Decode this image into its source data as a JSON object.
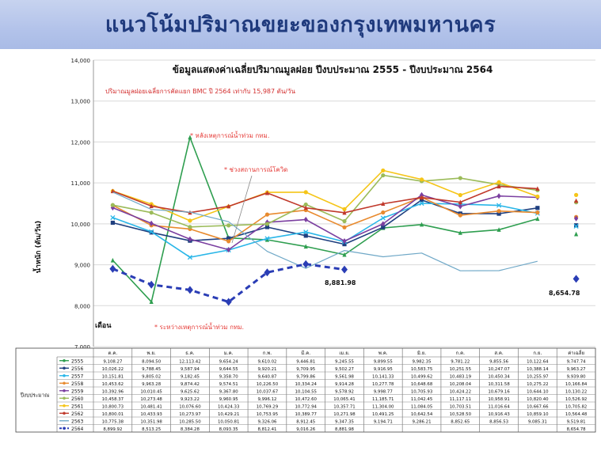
{
  "banner": {
    "title": "แนวโน้มปริมาณขยะของกรุงเทพมหานคร"
  },
  "chart_data": {
    "type": "line",
    "title": "ข้อมูลแสดงค่าเฉลี่ยปริมาณมูลฝอย ปีงบประมาณ 2555 - ปีงบประมาณ 2564",
    "subtitle": "ปริมาณมูลฝอยเฉลี่ยการคัดแยก BMC ปี 2564    เท่ากับ    15,987  ตัน/วัน",
    "ylabel": "น้ำหนัก (ตัน/วัน)",
    "xlabel": "เดือน",
    "ylim": [
      7000,
      14000
    ],
    "yticks": [
      "7,000",
      "8,000",
      "9,000",
      "10,000",
      "11,000",
      "12,000",
      "13,000",
      "14,000"
    ],
    "categories": [
      "ต.ค.",
      "พ.ย.",
      "ธ.ค.",
      "ม.ค.",
      "ก.พ.",
      "มี.ค.",
      "เม.ย.",
      "พ.ค.",
      "มิ.ย.",
      "ก.ค.",
      "ส.ค.",
      "ก.ย.",
      "ค่าเฉลี่ย"
    ],
    "table_row_header": "ปีงบประมาณ",
    "annotations": [
      {
        "text": "* หลังเหตุการณ์น้ำท่วม กทม.",
        "color": "#e53935"
      },
      {
        "text": "* ช่วงสถานการณ์โควิด",
        "color": "#e53935"
      },
      {
        "text": "* ระหว่างเหตุการณ์น้ำท่วม กทม.",
        "color": "#e53935"
      },
      {
        "text": "8,881.98",
        "color": "#111111"
      },
      {
        "text": "8,654.78",
        "color": "#111111"
      }
    ],
    "series": [
      {
        "name": "2555",
        "color": "#2e9e4f",
        "marker": "tri",
        "values": [
          9108.27,
          8094.5,
          12113.42,
          9654.24,
          9610.02,
          9446.81,
          9245.55,
          9899.55,
          9982.35,
          9781.22,
          9855.56,
          10122.64,
          9747.74
        ],
        "labels": [
          "9,108.27",
          "8,094.50",
          "12,113.42",
          "9,654.24",
          "9,610.02",
          "9,446.81",
          "9,245.55",
          "9,899.55",
          "9,982.35",
          "9,781.22",
          "9,855.56",
          "10,122.64",
          "9,747.74"
        ]
      },
      {
        "name": "2556",
        "color": "#1f3f7f",
        "marker": "sq",
        "values": [
          10026.22,
          9788.45,
          9587.94,
          9644.55,
          9920.21,
          9709.95,
          9502.27,
          9916.95,
          10583.75,
          10251.55,
          10247.07,
          10388.14,
          9963.27
        ],
        "labels": [
          "10,026.22",
          "9,788.45",
          "9,587.94",
          "9,644.55",
          "9,920.21",
          "9,709.95",
          "9,502.27",
          "9,916.95",
          "10,583.75",
          "10,251.55",
          "10,247.07",
          "10,388.14",
          "9,963.27"
        ]
      },
      {
        "name": "2557",
        "color": "#29b6e8",
        "marker": "x",
        "values": [
          10151.81,
          9805.02,
          9182.45,
          9358.7,
          9640.87,
          9799.86,
          9561.98,
          10141.33,
          10499.62,
          10483.19,
          10450.34,
          10255.97,
          9939.8
        ],
        "labels": [
          "10,151.81",
          "9,805.02",
          "9,182.45",
          "9,358.70",
          "9,640.87",
          "9,799.86",
          "9,561.98",
          "10,141.33",
          "10,499.62",
          "10,483.19",
          "10,450.34",
          "10,255.97",
          "9,939.80"
        ]
      },
      {
        "name": "2558",
        "color": "#e88a2e",
        "marker": "circ",
        "values": [
          10453.62,
          9963.28,
          9874.42,
          9574.51,
          10226.5,
          10334.24,
          9914.28,
          10277.78,
          10648.68,
          10208.04,
          10311.58,
          10275.22,
          10166.84
        ],
        "labels": [
          "10,453.62",
          "9,963.28",
          "9,874.42",
          "9,574.51",
          "10,226.50",
          "10,334.24",
          "9,914.28",
          "10,277.78",
          "10,648.68",
          "10,208.04",
          "10,311.58",
          "10,275.22",
          "10,166.84"
        ]
      },
      {
        "name": "2559",
        "color": "#7b3fa0",
        "marker": "dia",
        "values": [
          10392.96,
          10010.45,
          9625.62,
          9367.8,
          10037.67,
          10104.55,
          9578.92,
          9998.77,
          10705.93,
          10424.22,
          10679.16,
          10644.1,
          10130.22
        ],
        "labels": [
          "10,392.96",
          "10,010.45",
          "9,625.62",
          "9,367.80",
          "10,037.67",
          "10,104.55",
          "9,578.92",
          "9,998.77",
          "10,705.93",
          "10,424.22",
          "10,679.16",
          "10,644.10",
          "10,130.22"
        ]
      },
      {
        "name": "2560",
        "color": "#9bbb59",
        "marker": "circ",
        "values": [
          10458.37,
          10273.48,
          9923.22,
          9960.95,
          9996.12,
          10472.6,
          10065.41,
          11185.71,
          11042.45,
          11117.11,
          10958.91,
          10820.4,
          10526.92
        ],
        "labels": [
          "10,458.37",
          "10,273.48",
          "9,923.22",
          "9,960.95",
          "9,996.12",
          "10,472.60",
          "10,065.41",
          "11,185.71",
          "11,042.45",
          "11,117.11",
          "10,958.91",
          "10,820.40",
          "10,526.92"
        ]
      },
      {
        "name": "2561",
        "color": "#f5c518",
        "marker": "circ",
        "values": [
          10800.73,
          10481.41,
          10076.6,
          10424.33,
          10769.29,
          10772.94,
          10357.71,
          11304.0,
          11084.05,
          10703.51,
          11016.64,
          10667.66,
          10705.82
        ],
        "labels": [
          "10,800.73",
          "10,481.41",
          "10,076.60",
          "10,424.33",
          "10,769.29",
          "10,772.94",
          "10,357.71",
          "11,304.00",
          "11,084.05",
          "10,703.51",
          "11,016.64",
          "10,667.66",
          "10,705.82"
        ]
      },
      {
        "name": "2562",
        "color": "#c0392b",
        "marker": "tri",
        "values": [
          10800.01,
          10433.93,
          10273.97,
          10429.21,
          10753.95,
          10389.77,
          10271.98,
          10491.25,
          10642.54,
          10528.5,
          10916.43,
          10859.1,
          10564.48
        ],
        "labels": [
          "10,800.01",
          "10,433.93",
          "10,273.97",
          "10,429.21",
          "10,753.95",
          "10,389.77",
          "10,271.98",
          "10,491.25",
          "10,642.54",
          "10,528.50",
          "10,916.43",
          "10,859.10",
          "10,564.48"
        ]
      },
      {
        "name": "2563",
        "color": "#6fa8c7",
        "marker": "none",
        "values": [
          10775.38,
          10351.98,
          10285.5,
          10050.81,
          9326.06,
          8912.45,
          9347.35,
          9194.71,
          9286.21,
          8852.65,
          8856.53,
          9085.31,
          9519.81
        ],
        "labels": [
          "10,775.38",
          "10,351.98",
          "10,285.50",
          "10,050.81",
          "9,326.06",
          "8,912.45",
          "9,347.35",
          "9,194.71",
          "9,286.21",
          "8,852.65",
          "8,856.53",
          "9,085.31",
          "9,519.81"
        ]
      },
      {
        "name": "2564",
        "color": "#2a3db5",
        "marker": "dia",
        "dashed": true,
        "values": [
          8899.92,
          8513.25,
          8384.28,
          8093.35,
          8812.41,
          9016.26,
          8881.98,
          null,
          null,
          null,
          null,
          null,
          8654.78
        ],
        "labels": [
          "8,899.92",
          "8,513.25",
          "8,384.28",
          "8,093.35",
          "8,812.41",
          "9,016.26",
          "8,881.98",
          "",
          "",
          "",
          "",
          "",
          "8,654.78"
        ]
      }
    ]
  }
}
